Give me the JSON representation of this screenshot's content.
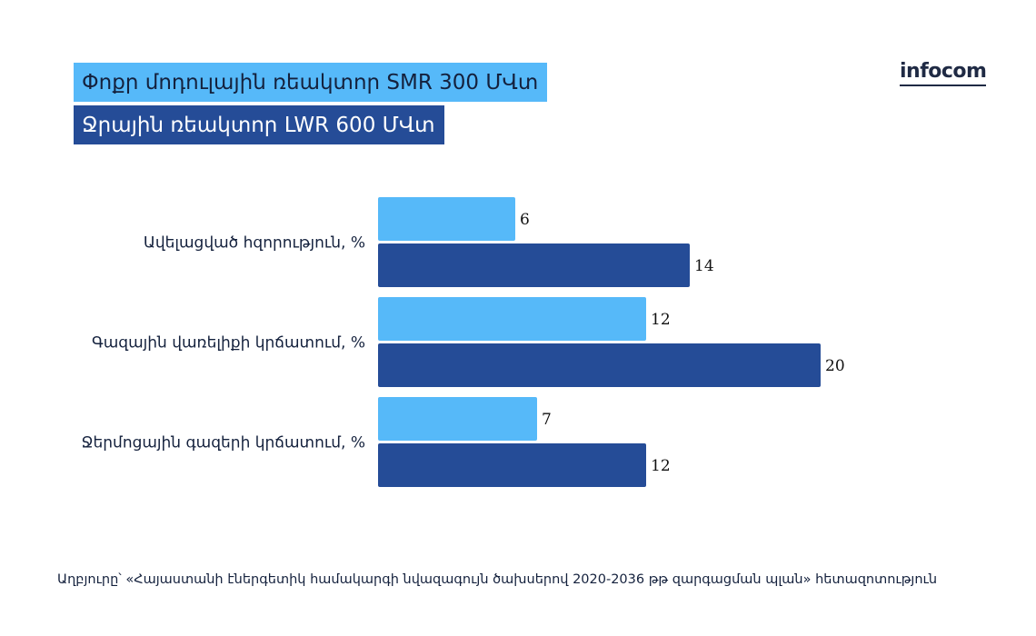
{
  "brand": {
    "logo_text": "infocom"
  },
  "source_note": "Աղբյուրը՝ «Հայաստանի էներգետիկ համակարգի նվազագույն ծախսերով 2020-2036 թթ զարգացման պլան» հետազոտություն",
  "colors": {
    "series_light": "#56b9f9",
    "series_dark": "#254c97",
    "text": "#14213d"
  },
  "chart_data": {
    "type": "bar",
    "orientation": "horizontal",
    "title": "",
    "xlabel": "",
    "ylabel": "",
    "categories": [
      "Ավելացված հզորություն, %",
      "Գազային վառելիքի կրճատում, %",
      "Ջերմոցային գազերի կրճատում, %"
    ],
    "series": [
      {
        "name": "Փոքր մոդուլային ռեակտոր SMR 300 ՄՎտ",
        "values": [
          6,
          12,
          7
        ]
      },
      {
        "name": "Ջրային ռեակտոր LWR 600 ՄՎտ",
        "values": [
          14,
          20,
          12
        ]
      }
    ],
    "xlim": [
      0,
      20
    ],
    "grid": false,
    "legend_position": "top-left",
    "data_labels": true
  }
}
